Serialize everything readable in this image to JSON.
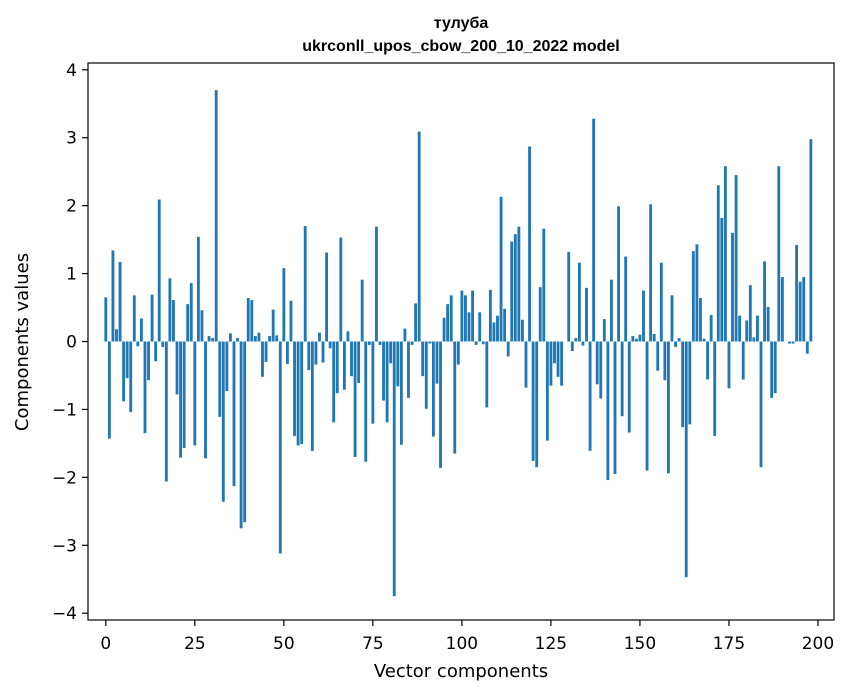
{
  "chart_data": {
    "type": "bar",
    "title": "тулуба",
    "subtitle": "ukrconll_upos_cbow_200_10_2022 model",
    "xlabel": "Vector components",
    "ylabel": "Components values",
    "xlim": [
      -5,
      204.5
    ],
    "ylim": [
      -4.1,
      4.1
    ],
    "xticks": [
      0,
      25,
      50,
      75,
      100,
      125,
      150,
      175,
      200
    ],
    "yticks": [
      -4,
      -3,
      -2,
      -1,
      0,
      1,
      2,
      3,
      4
    ],
    "xtick_labels": [
      "0",
      "25",
      "50",
      "75",
      "100",
      "125",
      "150",
      "175",
      "200"
    ],
    "ytick_labels": [
      "−4",
      "−3",
      "−2",
      "−1",
      "0",
      "1",
      "2",
      "3",
      "4"
    ],
    "bar_color": "#1f77b4",
    "values": [
      0.65,
      -1.43,
      1.34,
      0.18,
      1.17,
      -0.88,
      -0.54,
      -1.04,
      0.68,
      -0.07,
      0.34,
      -1.35,
      -0.57,
      0.69,
      -0.29,
      2.09,
      -0.08,
      -2.06,
      0.93,
      0.61,
      -0.78,
      -1.71,
      -1.57,
      0.55,
      0.86,
      -1.53,
      1.54,
      0.46,
      -1.72,
      0.08,
      0.05,
      3.7,
      -1.11,
      -2.36,
      -0.73,
      0.12,
      -2.13,
      0.05,
      -2.75,
      -2.66,
      0.64,
      0.61,
      0.08,
      0.13,
      -0.52,
      -0.3,
      0.08,
      0.47,
      0.09,
      -3.12,
      1.08,
      -0.33,
      0.6,
      -1.39,
      -1.53,
      -1.51,
      1.7,
      -0.42,
      -1.61,
      -0.34,
      0.13,
      -0.31,
      1.31,
      -0.1,
      -1.19,
      -0.76,
      1.53,
      -0.71,
      0.15,
      -0.51,
      -1.7,
      -0.61,
      0.91,
      -1.77,
      -0.05,
      -1.21,
      1.69,
      -0.05,
      -0.87,
      -1.19,
      -0.32,
      -3.75,
      -0.66,
      -1.52,
      0.19,
      -0.83,
      -0.05,
      0.56,
      3.09,
      -0.51,
      -0.99,
      -0.03,
      -1.4,
      -0.62,
      -1.86,
      0.35,
      0.55,
      0.68,
      -1.65,
      -0.34,
      0.75,
      0.68,
      0.43,
      0.75,
      -0.05,
      0.43,
      -0.04,
      -0.97,
      0.76,
      0.28,
      0.38,
      2.13,
      0.48,
      -0.22,
      1.47,
      1.58,
      1.69,
      0.32,
      -0.68,
      2.87,
      -1.76,
      -1.85,
      0.8,
      1.66,
      -1.46,
      -0.65,
      -0.32,
      -0.52,
      -0.65,
      0.0,
      1.32,
      -0.14,
      0.05,
      1.16,
      -0.06,
      0.79,
      -1.61,
      3.28,
      -0.63,
      -0.84,
      0.33,
      -2.04,
      0.91,
      -1.95,
      1.99,
      -1.1,
      1.25,
      -1.34,
      0.08,
      0.04,
      0.1,
      0.75,
      -1.9,
      2.02,
      0.11,
      -0.43,
      1.16,
      -0.57,
      -1.94,
      0.68,
      -0.08,
      0.05,
      -1.26,
      -3.47,
      -1.22,
      1.33,
      1.43,
      0.64,
      0.04,
      -0.56,
      0.39,
      -1.39,
      2.3,
      1.82,
      2.58,
      -0.69,
      1.6,
      2.45,
      0.38,
      -0.56,
      0.31,
      0.83,
      0.06,
      0.38,
      -1.85,
      1.18,
      0.51,
      -0.83,
      -0.76,
      2.58,
      0.95,
      0.0,
      -0.03,
      -0.03,
      1.42,
      0.88,
      0.95,
      -0.18,
      2.98
    ]
  }
}
